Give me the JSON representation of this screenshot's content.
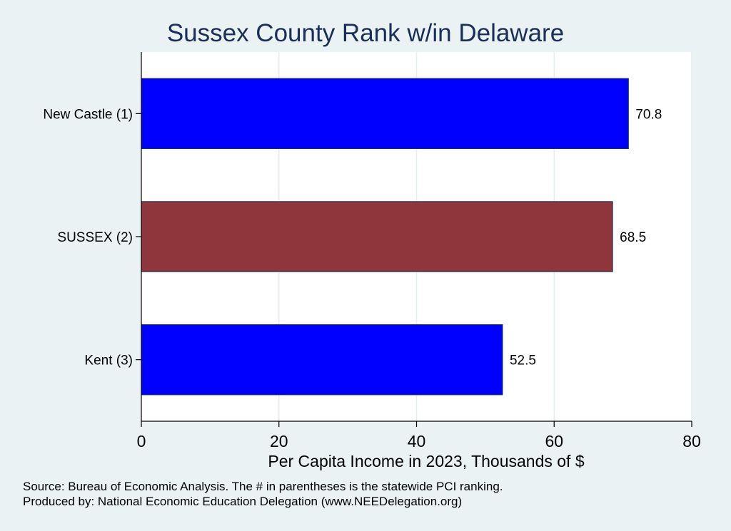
{
  "chart_data": {
    "type": "bar",
    "orientation": "horizontal",
    "title": "Sussex County Rank w/in Delaware",
    "xlabel": "Per Capita Income in 2023, Thousands of $",
    "ylabel": "",
    "categories": [
      "New Castle  (1)",
      "SUSSEX  (2)",
      "Kent  (3)"
    ],
    "values": [
      70.8,
      68.5,
      52.5
    ],
    "value_labels": [
      "70.8",
      "68.5",
      "52.5"
    ],
    "bar_colors": [
      "#0000ff",
      "#8f363d",
      "#0000ff"
    ],
    "xlim": [
      0,
      80
    ],
    "x_ticks": [
      0,
      20,
      40,
      60,
      80
    ],
    "x_tick_labels": [
      "0",
      "20",
      "40",
      "60",
      "80"
    ],
    "grid": "vertical",
    "legend": "none"
  },
  "notes": {
    "source": "Source: Bureau of Economic Analysis. The # in parentheses is the statewide PCI ranking.",
    "produced_by": "Produced by: National Economic Education Delegation (www.NEEDelegation.org)"
  },
  "colors": {
    "background": "#eaf2f3",
    "plot_background": "#ffffff",
    "title": "#1a2f57",
    "gridline": "#e4eef0",
    "bar_outline": "#1a2f57"
  }
}
